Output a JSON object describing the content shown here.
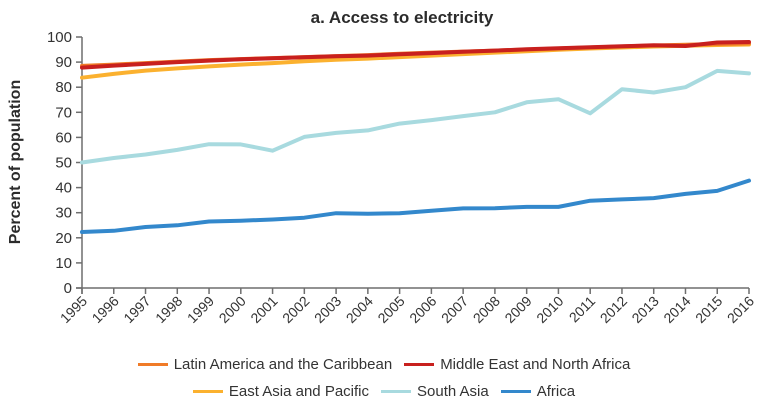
{
  "chart_data": {
    "type": "line",
    "title": "a. Access to electricity",
    "xlabel": "",
    "ylabel": "Percent of population",
    "x": [
      "1995",
      "1996",
      "1997",
      "1998",
      "1999",
      "2000",
      "2001",
      "2002",
      "2003",
      "2004",
      "2005",
      "2006",
      "2007",
      "2008",
      "2009",
      "2010",
      "2011",
      "2012",
      "2013",
      "2014",
      "2015",
      "2016"
    ],
    "ylim": [
      0,
      100
    ],
    "yticks": [
      0,
      10,
      20,
      30,
      40,
      50,
      60,
      70,
      80,
      90,
      100
    ],
    "grid": false,
    "legend_position": "bottom",
    "series": [
      {
        "name": "Latin America and the Caribbean",
        "color": "#f07b28",
        "values": [
          88.5,
          89.0,
          89.6,
          90.2,
          90.8,
          91.2,
          91.6,
          92.0,
          92.4,
          92.8,
          93.3,
          93.8,
          94.2,
          94.6,
          95.0,
          95.4,
          95.8,
          96.2,
          96.6,
          96.9,
          97.2,
          97.5
        ]
      },
      {
        "name": "Middle East and North Africa",
        "color": "#c8201e",
        "values": [
          87.8,
          88.6,
          89.3,
          90.0,
          90.6,
          91.1,
          91.5,
          91.9,
          92.3,
          92.6,
          93.1,
          93.6,
          94.1,
          94.6,
          95.1,
          95.5,
          95.9,
          96.3,
          96.7,
          96.4,
          97.8,
          98.0
        ]
      },
      {
        "name": "East Asia and Pacific",
        "color": "#fbb12f",
        "values": [
          83.8,
          85.3,
          86.6,
          87.5,
          88.3,
          89.0,
          89.6,
          90.3,
          90.9,
          91.4,
          92.0,
          92.6,
          93.2,
          93.8,
          94.3,
          94.9,
          95.4,
          95.8,
          96.2,
          96.5,
          96.8,
          97.0
        ]
      },
      {
        "name": "South Asia",
        "color": "#a8dadf",
        "values": [
          50.0,
          51.8,
          53.2,
          55.0,
          57.3,
          57.2,
          54.7,
          60.2,
          61.8,
          62.8,
          65.5,
          66.9,
          68.5,
          70.0,
          74.0,
          75.2,
          69.6,
          79.2,
          77.9,
          80.0,
          86.5,
          85.5
        ]
      },
      {
        "name": "Africa",
        "color": "#3388cc",
        "values": [
          22.3,
          22.8,
          24.3,
          25.0,
          26.5,
          26.8,
          27.3,
          28.0,
          29.8,
          29.6,
          29.8,
          30.8,
          31.7,
          31.8,
          32.3,
          32.3,
          34.8,
          35.3,
          35.8,
          37.5,
          38.7,
          42.8
        ]
      }
    ]
  }
}
